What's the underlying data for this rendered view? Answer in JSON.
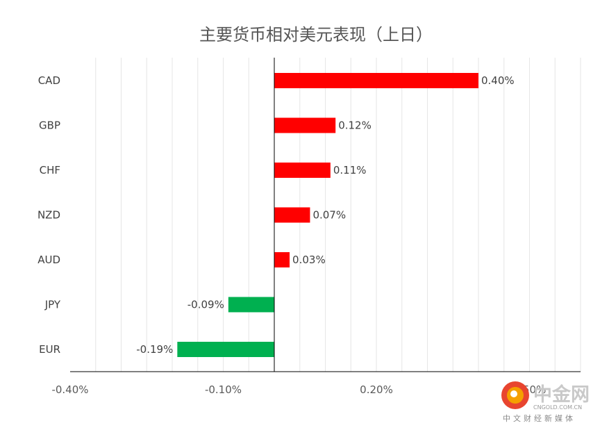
{
  "chart_data": {
    "type": "bar",
    "orientation": "horizontal",
    "title": "主要货币相对美元表现（上日）",
    "categories": [
      "CAD",
      "GBP",
      "CHF",
      "NZD",
      "AUD",
      "JPY",
      "EUR"
    ],
    "values": [
      0.4,
      0.12,
      0.11,
      0.07,
      0.03,
      -0.09,
      -0.19
    ],
    "value_labels": [
      "0.40%",
      "0.12%",
      "0.11%",
      "0.07%",
      "0.03%",
      "-0.09%",
      "-0.19%"
    ],
    "xlim": [
      -0.4,
      0.6
    ],
    "x_ticks": [
      "-0.40%",
      "-0.10%",
      "0.20%",
      "0.50%"
    ],
    "x_tick_values": [
      -0.4,
      -0.1,
      0.2,
      0.5
    ],
    "grid": true,
    "legend": "none",
    "colors": {
      "positive": "#ff0000",
      "negative": "#00b050"
    }
  },
  "watermark": {
    "name": "中金网",
    "url": "CNGOLD.COM.CN",
    "tagline": "中文财经新媒体",
    "colors": {
      "logo_orange": "#f5a000",
      "logo_red": "#e8452f"
    }
  }
}
